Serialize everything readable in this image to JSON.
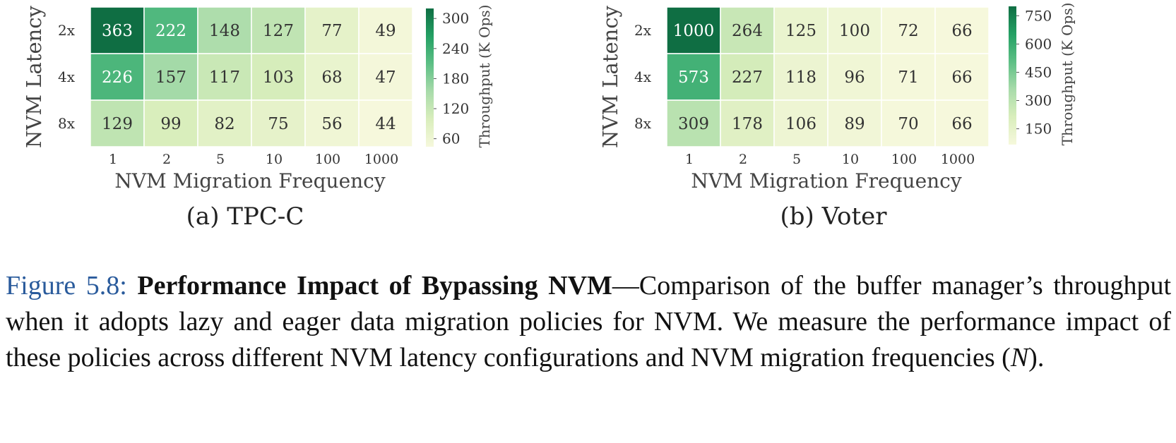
{
  "chart_data": [
    {
      "type": "heatmap",
      "subtitle": "(a) TPC-C",
      "xlabel": "NVM Migration Frequency",
      "ylabel": "NVM Latency",
      "x_categories": [
        "1",
        "2",
        "5",
        "10",
        "100",
        "1000"
      ],
      "y_categories": [
        "2x",
        "4x",
        "8x"
      ],
      "values": [
        [
          363,
          222,
          148,
          127,
          77,
          49
        ],
        [
          226,
          157,
          117,
          103,
          68,
          47
        ],
        [
          129,
          99,
          82,
          75,
          56,
          44
        ]
      ],
      "colorbar_label": "Throughput (K Ops)",
      "colorbar_ticks": [
        60,
        120,
        180,
        240,
        300
      ],
      "colorbar_range": [
        44,
        320
      ],
      "colormap": [
        "#f6f8dc",
        "#d9eebc",
        "#a8dbaa",
        "#5dbf85",
        "#24a064",
        "#0f6e43"
      ]
    },
    {
      "type": "heatmap",
      "subtitle": "(b) Voter",
      "xlabel": "NVM Migration Frequency",
      "ylabel": "NVM Latency",
      "x_categories": [
        "1",
        "2",
        "5",
        "10",
        "100",
        "1000"
      ],
      "y_categories": [
        "2x",
        "4x",
        "8x"
      ],
      "values": [
        [
          1000,
          264,
          125,
          100,
          72,
          66
        ],
        [
          573,
          227,
          118,
          96,
          71,
          66
        ],
        [
          309,
          178,
          106,
          89,
          70,
          66
        ]
      ],
      "colorbar_label": "Throughput (K Ops)",
      "colorbar_ticks": [
        150,
        300,
        450,
        600,
        750
      ],
      "colorbar_range": [
        66,
        800
      ],
      "colormap": [
        "#f6f8dc",
        "#d9eebc",
        "#a8dbaa",
        "#5dbf85",
        "#24a064",
        "#0f6e43"
      ]
    }
  ],
  "caption": {
    "label": "Figure 5.8:",
    "bold_title": "Performance Impact of Bypassing NVM",
    "text": "—Comparison of the buffer manager’s throughput when it adopts lazy and eager data migration policies for NVM. We measure the performance impact of these policies across different NVM latency configurations and NVM migration frequencies (",
    "symbol": "N",
    "end": ")."
  }
}
